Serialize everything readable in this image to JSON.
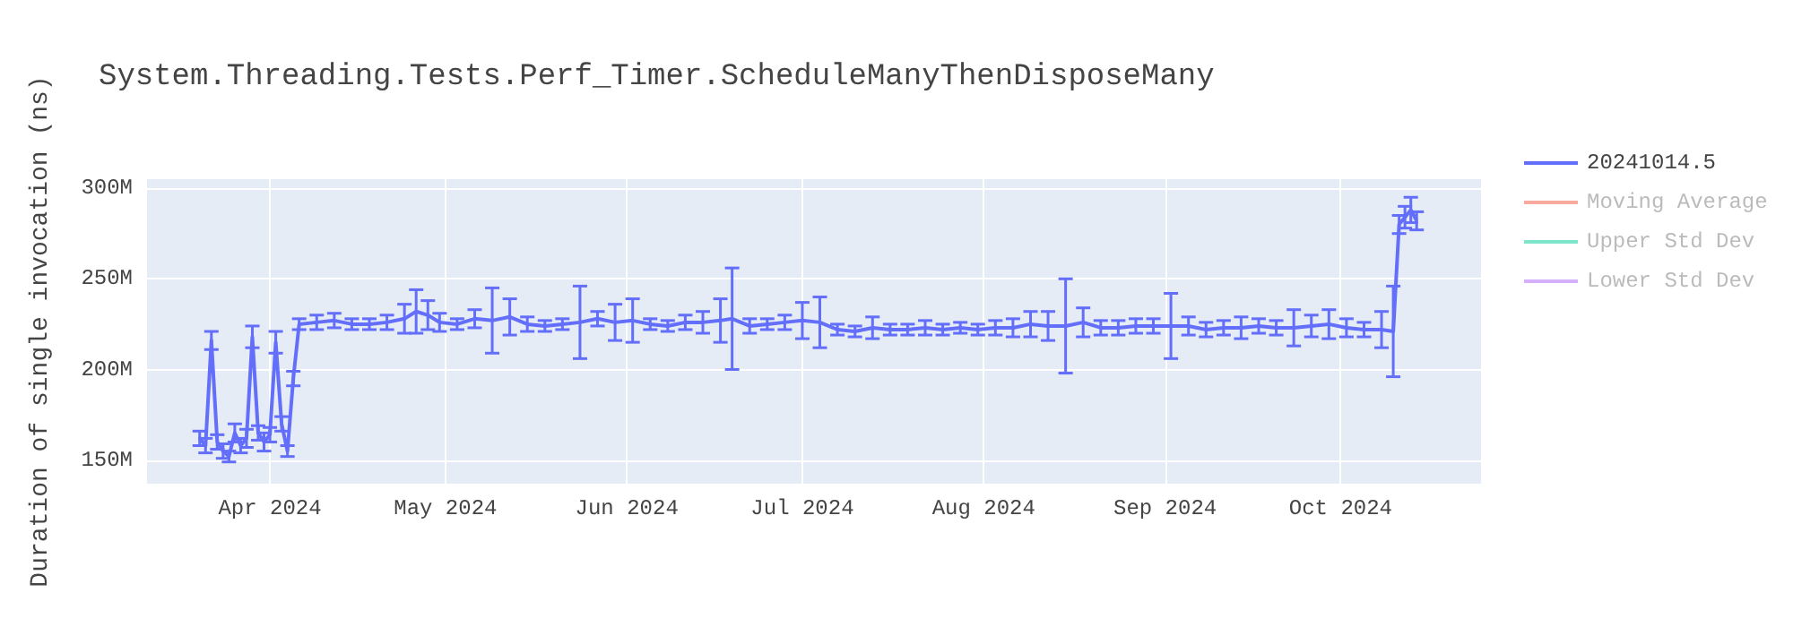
{
  "chart_data": {
    "type": "line",
    "title": "System.Threading.Tests.Perf_Timer.ScheduleManyThenDisposeMany",
    "ylabel": "Duration of single invocation (ns)",
    "x": [
      "2024-03-20",
      "2024-03-21",
      "2024-03-22",
      "2024-03-23",
      "2024-03-24",
      "2024-03-25",
      "2024-03-26",
      "2024-03-27",
      "2024-03-28",
      "2024-03-29",
      "2024-03-30",
      "2024-03-31",
      "2024-04-01",
      "2024-04-02",
      "2024-04-03",
      "2024-04-04",
      "2024-04-05",
      "2024-04-06",
      "2024-04-09",
      "2024-04-12",
      "2024-04-15",
      "2024-04-18",
      "2024-04-21",
      "2024-04-24",
      "2024-04-26",
      "2024-04-28",
      "2024-04-30",
      "2024-05-03",
      "2024-05-06",
      "2024-05-09",
      "2024-05-12",
      "2024-05-15",
      "2024-05-18",
      "2024-05-21",
      "2024-05-24",
      "2024-05-27",
      "2024-05-30",
      "2024-06-02",
      "2024-06-05",
      "2024-06-08",
      "2024-06-11",
      "2024-06-14",
      "2024-06-17",
      "2024-06-19",
      "2024-06-22",
      "2024-06-25",
      "2024-06-28",
      "2024-07-01",
      "2024-07-04",
      "2024-07-07",
      "2024-07-10",
      "2024-07-13",
      "2024-07-16",
      "2024-07-19",
      "2024-07-22",
      "2024-07-25",
      "2024-07-28",
      "2024-07-31",
      "2024-08-03",
      "2024-08-06",
      "2024-08-09",
      "2024-08-12",
      "2024-08-15",
      "2024-08-18",
      "2024-08-21",
      "2024-08-24",
      "2024-08-27",
      "2024-08-30",
      "2024-09-02",
      "2024-09-05",
      "2024-09-08",
      "2024-09-11",
      "2024-09-14",
      "2024-09-17",
      "2024-09-20",
      "2024-09-23",
      "2024-09-26",
      "2024-09-29",
      "2024-10-02",
      "2024-10-05",
      "2024-10-08",
      "2024-10-10",
      "2024-10-11",
      "2024-10-12",
      "2024-10-13",
      "2024-10-14"
    ],
    "series": [
      {
        "name": "20241014.5",
        "color": "#636efa",
        "values": [
          162000000,
          158000000,
          216000000,
          160000000,
          155000000,
          152000000,
          165000000,
          158000000,
          162000000,
          218000000,
          165000000,
          160000000,
          164000000,
          215000000,
          170000000,
          155000000,
          195000000,
          225000000,
          226000000,
          227000000,
          225000000,
          225000000,
          226000000,
          228000000,
          232000000,
          230000000,
          226000000,
          225000000,
          228000000,
          227000000,
          229000000,
          225000000,
          224000000,
          225000000,
          226000000,
          228000000,
          226000000,
          227000000,
          225000000,
          224000000,
          226000000,
          226000000,
          227000000,
          228000000,
          224000000,
          225000000,
          226000000,
          227000000,
          226000000,
          222000000,
          221000000,
          223000000,
          222000000,
          222000000,
          223000000,
          222000000,
          223000000,
          222000000,
          223000000,
          223000000,
          225000000,
          224000000,
          224000000,
          226000000,
          223000000,
          223000000,
          224000000,
          224000000,
          224000000,
          224000000,
          222000000,
          223000000,
          223000000,
          224000000,
          223000000,
          223000000,
          224000000,
          225000000,
          223000000,
          222000000,
          222000000,
          221000000,
          280000000,
          284000000,
          288000000,
          282000000
        ],
        "errors": [
          4000000,
          4000000,
          5000000,
          4000000,
          4000000,
          3000000,
          5000000,
          4000000,
          5000000,
          6000000,
          4000000,
          5000000,
          4000000,
          6000000,
          4000000,
          3000000,
          4000000,
          3000000,
          4000000,
          4000000,
          3000000,
          3000000,
          4000000,
          8000000,
          12000000,
          8000000,
          5000000,
          3000000,
          5000000,
          18000000,
          10000000,
          4000000,
          3000000,
          3000000,
          20000000,
          4000000,
          10000000,
          12000000,
          3000000,
          3000000,
          4000000,
          6000000,
          12000000,
          28000000,
          4000000,
          3000000,
          4000000,
          10000000,
          14000000,
          3000000,
          3000000,
          6000000,
          3000000,
          3000000,
          4000000,
          3000000,
          3000000,
          3000000,
          4000000,
          5000000,
          7000000,
          8000000,
          26000000,
          8000000,
          4000000,
          4000000,
          4000000,
          4000000,
          18000000,
          5000000,
          4000000,
          4000000,
          6000000,
          4000000,
          4000000,
          10000000,
          6000000,
          8000000,
          5000000,
          4000000,
          10000000,
          25000000,
          5000000,
          6000000,
          7000000,
          5000000
        ]
      },
      {
        "name": "Moving Average",
        "color": "#ef553b",
        "values": [
          null,
          null,
          null,
          null,
          null,
          null,
          null,
          null,
          null,
          null,
          null,
          null,
          null,
          null,
          null,
          null,
          null,
          null,
          null,
          null,
          null,
          null,
          null,
          null,
          null,
          null,
          null,
          null,
          null,
          null,
          null,
          null,
          null,
          null,
          null,
          null,
          null,
          null,
          null,
          null,
          null,
          null,
          null,
          null,
          null,
          null,
          null,
          null,
          null,
          null,
          null,
          null,
          null,
          null,
          null,
          null,
          null,
          null,
          null,
          null,
          null,
          null,
          null,
          null,
          null,
          null,
          null,
          null,
          null,
          null,
          null,
          null,
          null,
          null,
          null,
          null,
          null,
          null,
          null,
          null,
          null,
          null,
          null,
          null,
          null,
          null
        ]
      },
      {
        "name": "Upper Std Dev",
        "color": "#00cc96",
        "values": [
          null,
          null,
          null,
          null,
          null,
          null,
          null,
          null,
          null,
          null,
          null,
          null,
          null,
          null,
          null,
          null,
          null,
          null,
          null,
          null,
          null,
          null,
          null,
          null,
          null,
          null,
          null,
          null,
          null,
          null,
          null,
          null,
          null,
          null,
          null,
          null,
          null,
          null,
          null,
          null,
          null,
          null,
          null,
          null,
          null,
          null,
          null,
          null,
          null,
          null,
          null,
          null,
          null,
          null,
          null,
          null,
          null,
          null,
          null,
          null,
          null,
          null,
          null,
          null,
          null,
          null,
          null,
          null,
          null,
          null,
          null,
          null,
          null,
          null,
          null,
          null,
          null,
          null,
          null,
          null,
          null,
          null,
          null,
          null,
          null,
          null
        ]
      },
      {
        "name": "Lower Std Dev",
        "color": "#ab63fa",
        "values": [
          null,
          null,
          null,
          null,
          null,
          null,
          null,
          null,
          null,
          null,
          null,
          null,
          null,
          null,
          null,
          null,
          null,
          null,
          null,
          null,
          null,
          null,
          null,
          null,
          null,
          null,
          null,
          null,
          null,
          null,
          null,
          null,
          null,
          null,
          null,
          null,
          null,
          null,
          null,
          null,
          null,
          null,
          null,
          null,
          null,
          null,
          null,
          null,
          null,
          null,
          null,
          null,
          null,
          null,
          null,
          null,
          null,
          null,
          null,
          null,
          null,
          null,
          null,
          null,
          null,
          null,
          null,
          null,
          null,
          null,
          null,
          null,
          null,
          null,
          null,
          null,
          null,
          null,
          null,
          null,
          null,
          null,
          null,
          null,
          null,
          null
        ]
      }
    ],
    "xlim": [
      "2024-03-11",
      "2024-10-25"
    ],
    "xticks": [
      {
        "value": "2024-04-01",
        "label": "Apr 2024"
      },
      {
        "value": "2024-05-01",
        "label": "May 2024"
      },
      {
        "value": "2024-06-01",
        "label": "Jun 2024"
      },
      {
        "value": "2024-07-01",
        "label": "Jul 2024"
      },
      {
        "value": "2024-08-01",
        "label": "Aug 2024"
      },
      {
        "value": "2024-09-01",
        "label": "Sep 2024"
      },
      {
        "value": "2024-10-01",
        "label": "Oct 2024"
      }
    ],
    "ylim": [
      137000000,
      305000000
    ],
    "yticks": [
      {
        "value": 150000000,
        "label": "150M"
      },
      {
        "value": 200000000,
        "label": "200M"
      },
      {
        "value": 250000000,
        "label": "250M"
      },
      {
        "value": 300000000,
        "label": "300M"
      }
    ],
    "grid": true,
    "legend": "top right"
  }
}
